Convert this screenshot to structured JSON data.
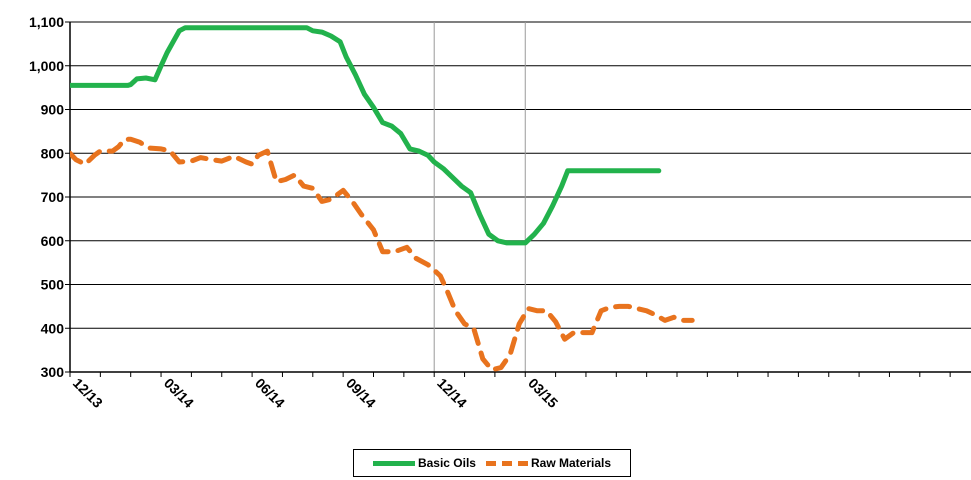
{
  "chart_data": {
    "type": "line",
    "title": "",
    "xlabel": "",
    "ylabel": "",
    "ylim": [
      300,
      1100
    ],
    "y_ticks": [
      "300",
      "400",
      "500",
      "600",
      "700",
      "800",
      "900",
      "1,000",
      "1,100"
    ],
    "x_ticks": [
      "12/13",
      "03/14",
      "06/14",
      "09/14",
      "12/14",
      "03/15"
    ],
    "grid": "horizontal",
    "legend_position": "bottom",
    "series": [
      {
        "name": "Basic Oils",
        "color": "#22b24c",
        "style": "solid",
        "points": [
          [
            0,
            955
          ],
          [
            0.5,
            955
          ],
          [
            1.0,
            955
          ],
          [
            1.5,
            955
          ],
          [
            1.9,
            955
          ],
          [
            2.0,
            957
          ],
          [
            2.2,
            970
          ],
          [
            2.5,
            972
          ],
          [
            2.8,
            968
          ],
          [
            3.0,
            1000
          ],
          [
            3.2,
            1030
          ],
          [
            3.4,
            1055
          ],
          [
            3.6,
            1080
          ],
          [
            3.8,
            1087
          ],
          [
            4.5,
            1087
          ],
          [
            5.5,
            1087
          ],
          [
            6.5,
            1087
          ],
          [
            7.2,
            1087
          ],
          [
            7.5,
            1087
          ],
          [
            7.8,
            1087
          ],
          [
            8.0,
            1080
          ],
          [
            8.3,
            1077
          ],
          [
            8.6,
            1068
          ],
          [
            8.9,
            1055
          ],
          [
            9.1,
            1020
          ],
          [
            9.4,
            980
          ],
          [
            9.7,
            935
          ],
          [
            10.0,
            905
          ],
          [
            10.3,
            870
          ],
          [
            10.6,
            862
          ],
          [
            10.9,
            845
          ],
          [
            11.2,
            810
          ],
          [
            11.5,
            805
          ],
          [
            11.8,
            795
          ],
          [
            12.0,
            780
          ],
          [
            12.3,
            765
          ],
          [
            12.6,
            745
          ],
          [
            12.9,
            725
          ],
          [
            13.2,
            710
          ],
          [
            13.5,
            660
          ],
          [
            13.8,
            615
          ],
          [
            14.1,
            600
          ],
          [
            14.4,
            595
          ],
          [
            14.7,
            595
          ],
          [
            15.0,
            595
          ],
          [
            15.3,
            615
          ],
          [
            15.6,
            640
          ],
          [
            15.9,
            680
          ],
          [
            16.2,
            725
          ],
          [
            16.4,
            760
          ],
          [
            16.7,
            760
          ],
          [
            17.0,
            760
          ],
          [
            18.0,
            760
          ],
          [
            19.0,
            760
          ],
          [
            19.4,
            760
          ]
        ]
      },
      {
        "name": "Raw Materials",
        "color": "#e8731e",
        "style": "dashed",
        "points": [
          [
            0,
            800
          ],
          [
            0.2,
            785
          ],
          [
            0.5,
            775
          ],
          [
            0.8,
            795
          ],
          [
            1.0,
            805
          ],
          [
            1.4,
            805
          ],
          [
            1.6,
            815
          ],
          [
            1.8,
            832
          ],
          [
            2.0,
            832
          ],
          [
            2.3,
            825
          ],
          [
            2.6,
            812
          ],
          [
            3.0,
            810
          ],
          [
            3.3,
            805
          ],
          [
            3.6,
            780
          ],
          [
            4.0,
            782
          ],
          [
            4.3,
            790
          ],
          [
            4.7,
            785
          ],
          [
            5.0,
            782
          ],
          [
            5.4,
            793
          ],
          [
            5.8,
            780
          ],
          [
            6.0,
            775
          ],
          [
            6.2,
            795
          ],
          [
            6.5,
            805
          ],
          [
            6.8,
            735
          ],
          [
            7.1,
            740
          ],
          [
            7.4,
            750
          ],
          [
            7.7,
            725
          ],
          [
            8.0,
            720
          ],
          [
            8.3,
            690
          ],
          [
            8.6,
            695
          ],
          [
            9.0,
            715
          ],
          [
            9.3,
            690
          ],
          [
            9.6,
            660
          ],
          [
            10.0,
            625
          ],
          [
            10.3,
            575
          ],
          [
            10.7,
            575
          ],
          [
            11.1,
            585
          ],
          [
            11.4,
            560
          ],
          [
            11.8,
            545
          ],
          [
            12.2,
            520
          ],
          [
            12.4,
            490
          ],
          [
            12.7,
            440
          ],
          [
            13.0,
            410
          ],
          [
            13.3,
            400
          ],
          [
            13.6,
            330
          ],
          [
            13.9,
            305
          ],
          [
            14.2,
            310
          ],
          [
            14.5,
            340
          ],
          [
            14.8,
            410
          ],
          [
            15.1,
            445
          ],
          [
            15.4,
            440
          ],
          [
            15.7,
            440
          ],
          [
            16.0,
            415
          ],
          [
            16.3,
            375
          ],
          [
            16.6,
            390
          ],
          [
            16.9,
            390
          ],
          [
            17.2,
            390
          ],
          [
            17.5,
            440
          ],
          [
            17.8,
            448
          ],
          [
            18.1,
            450
          ],
          [
            18.4,
            450
          ],
          [
            18.7,
            445
          ],
          [
            19.0,
            440
          ],
          [
            19.3,
            430
          ],
          [
            19.6,
            418
          ],
          [
            19.9,
            425
          ],
          [
            20.2,
            418
          ],
          [
            20.5,
            418
          ]
        ]
      }
    ]
  }
}
